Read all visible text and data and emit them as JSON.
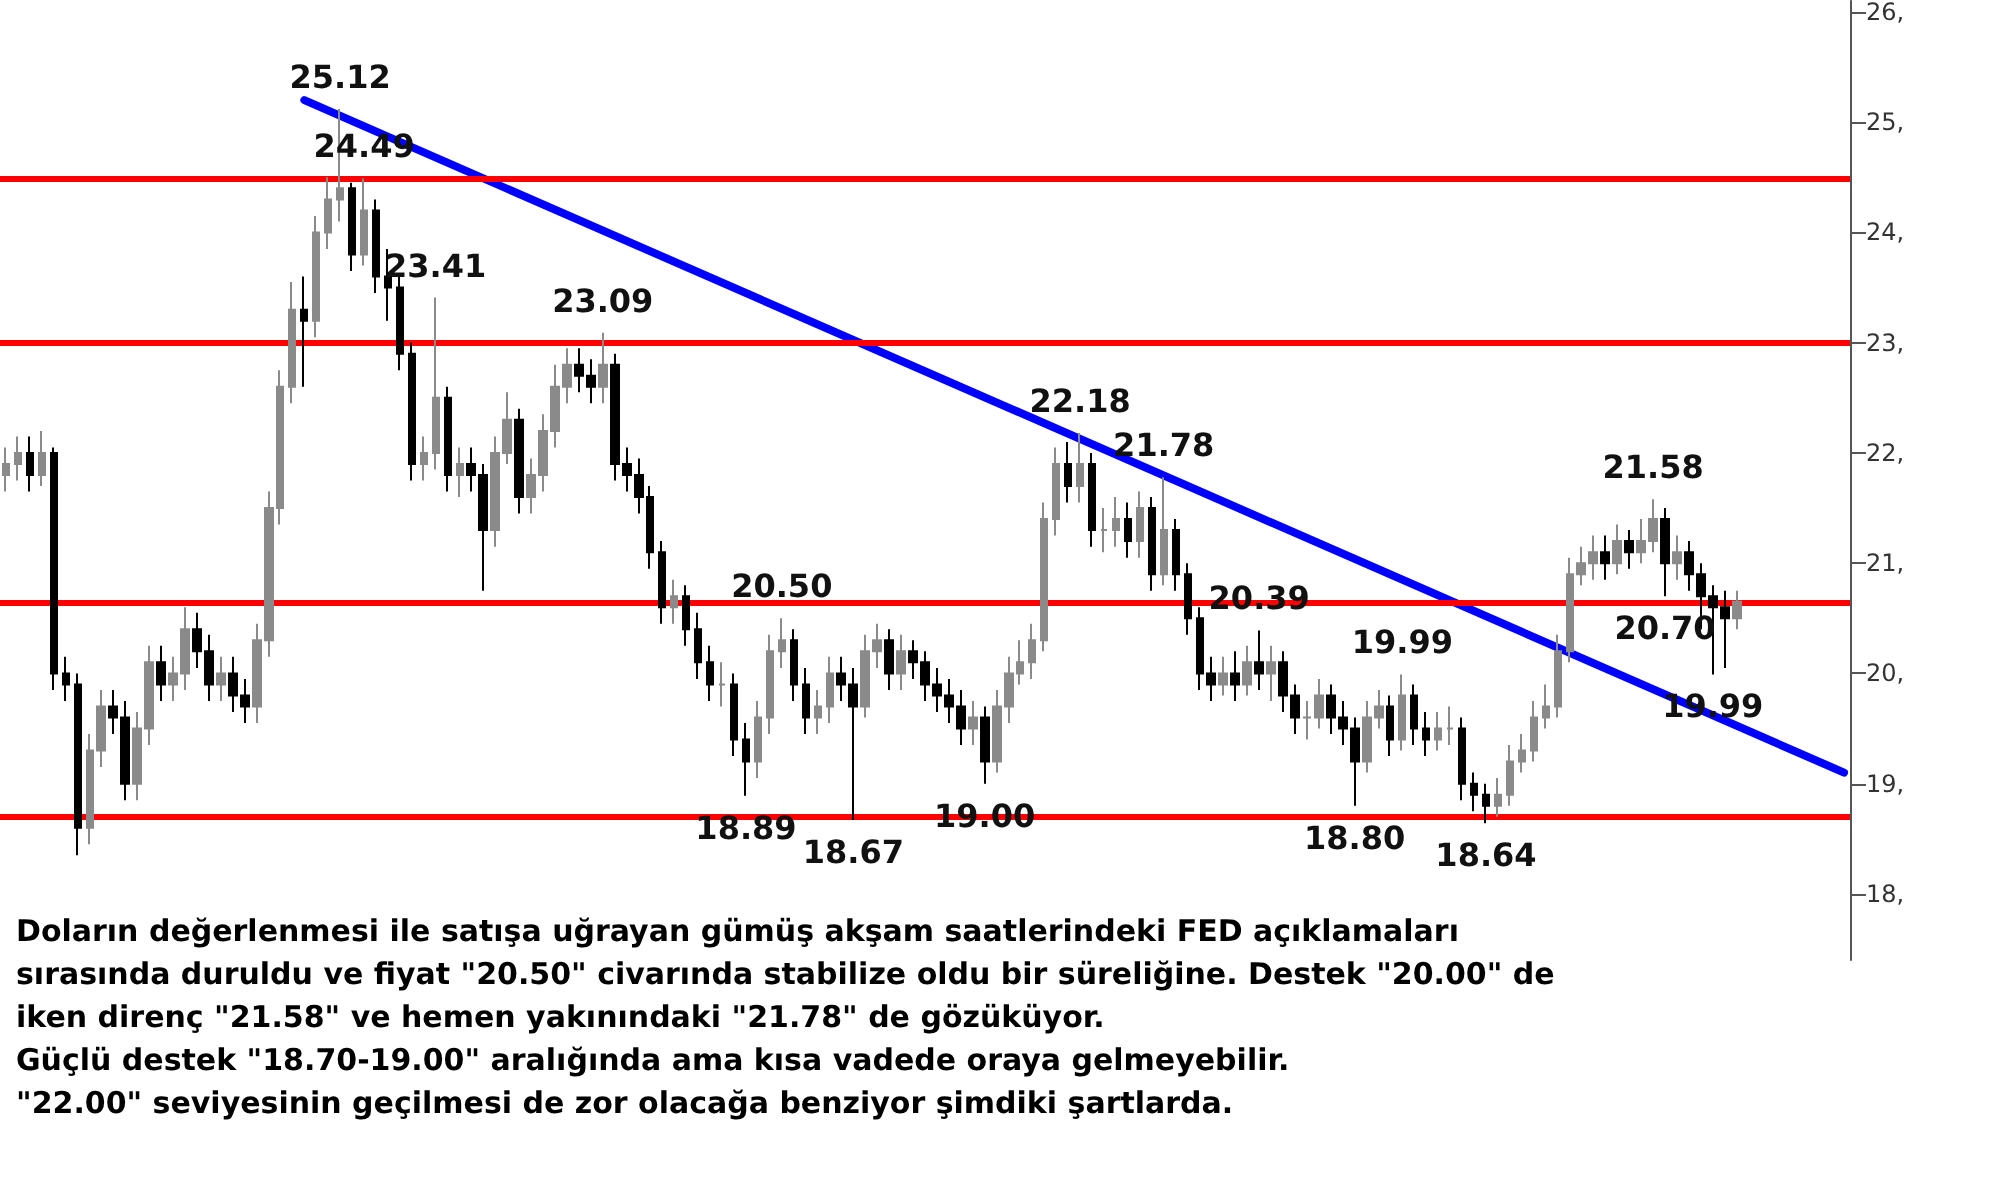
{
  "chart_data": {
    "type": "candlestick",
    "categories": [
      null,
      null,
      null,
      null,
      null,
      null,
      null,
      null,
      null,
      null,
      null,
      null,
      null,
      null,
      null,
      null,
      null,
      null,
      null,
      null,
      null,
      null,
      null,
      null,
      null,
      null,
      null,
      null,
      null,
      null,
      null,
      null,
      null,
      null,
      null,
      null,
      null,
      null,
      null,
      null,
      null,
      null,
      null,
      null,
      null,
      null,
      null,
      null,
      null,
      null,
      null,
      null,
      null,
      null,
      null,
      null,
      null,
      null,
      null,
      null,
      null,
      null,
      null,
      null,
      null,
      null,
      null,
      null,
      null,
      null,
      null,
      null,
      null,
      null,
      null,
      null,
      null,
      null,
      null,
      null,
      null,
      null,
      null,
      null,
      null,
      null,
      null,
      null,
      null,
      null,
      null,
      null,
      null,
      null,
      null,
      null,
      null,
      null,
      null,
      null,
      null,
      null,
      null,
      null,
      null,
      null,
      null,
      null,
      null,
      null,
      null,
      null,
      null,
      null,
      null,
      null,
      null,
      null,
      null,
      null,
      null,
      null,
      null,
      null,
      null,
      null,
      null,
      null,
      null,
      null,
      null,
      null,
      null,
      null,
      null,
      null,
      null,
      null,
      null,
      null,
      null,
      null,
      null,
      null,
      null,
      null,
      null,
      null,
      null,
      null,
      null,
      null,
      null,
      null,
      null
    ],
    "ohlc": [
      [
        21.8,
        22.05,
        21.65,
        21.9
      ],
      [
        21.9,
        22.15,
        21.75,
        22.0
      ],
      [
        22.0,
        22.15,
        21.65,
        21.8
      ],
      [
        21.8,
        22.2,
        21.7,
        22.0
      ],
      [
        22.0,
        22.05,
        19.85,
        20.0
      ],
      [
        20.0,
        20.15,
        19.75,
        19.9
      ],
      [
        19.9,
        20.0,
        18.35,
        18.6
      ],
      [
        18.6,
        19.45,
        18.45,
        19.3
      ],
      [
        19.3,
        19.85,
        19.15,
        19.7
      ],
      [
        19.7,
        19.85,
        19.45,
        19.6
      ],
      [
        19.6,
        19.75,
        18.85,
        19.0
      ],
      [
        19.0,
        19.65,
        18.85,
        19.5
      ],
      [
        19.5,
        20.25,
        19.35,
        20.1
      ],
      [
        20.1,
        20.25,
        19.75,
        19.9
      ],
      [
        19.9,
        20.15,
        19.75,
        20.0
      ],
      [
        20.0,
        20.6,
        19.85,
        20.4
      ],
      [
        20.4,
        20.55,
        20.05,
        20.2
      ],
      [
        20.2,
        20.35,
        19.75,
        19.9
      ],
      [
        19.9,
        20.15,
        19.75,
        20.0
      ],
      [
        20.0,
        20.15,
        19.65,
        19.8
      ],
      [
        19.8,
        19.95,
        19.55,
        19.7
      ],
      [
        19.7,
        20.45,
        19.55,
        20.3
      ],
      [
        20.3,
        21.65,
        20.15,
        21.5
      ],
      [
        21.5,
        22.75,
        21.35,
        22.6
      ],
      [
        22.6,
        23.55,
        22.45,
        23.3
      ],
      [
        23.3,
        23.6,
        22.6,
        23.2
      ],
      [
        23.2,
        24.15,
        23.05,
        24.0
      ],
      [
        24.0,
        24.5,
        23.85,
        24.3
      ],
      [
        24.3,
        25.12,
        24.1,
        24.4
      ],
      [
        24.4,
        24.45,
        23.65,
        23.8
      ],
      [
        23.8,
        24.49,
        23.7,
        24.2
      ],
      [
        24.2,
        24.3,
        23.45,
        23.6
      ],
      [
        23.6,
        23.85,
        23.2,
        23.5
      ],
      [
        23.5,
        23.6,
        22.75,
        22.9
      ],
      [
        22.9,
        23.0,
        21.75,
        21.9
      ],
      [
        21.9,
        22.15,
        21.75,
        22.0
      ],
      [
        22.0,
        23.41,
        21.85,
        22.5
      ],
      [
        22.5,
        22.6,
        21.65,
        21.8
      ],
      [
        21.8,
        22.05,
        21.6,
        21.9
      ],
      [
        21.9,
        22.05,
        21.65,
        21.8
      ],
      [
        21.8,
        21.9,
        20.75,
        21.3
      ],
      [
        21.3,
        22.15,
        21.15,
        22.0
      ],
      [
        22.0,
        22.55,
        21.9,
        22.3
      ],
      [
        22.3,
        22.4,
        21.45,
        21.6
      ],
      [
        21.6,
        21.95,
        21.45,
        21.8
      ],
      [
        21.8,
        22.35,
        21.65,
        22.2
      ],
      [
        22.2,
        22.8,
        22.05,
        22.6
      ],
      [
        22.6,
        22.95,
        22.45,
        22.8
      ],
      [
        22.8,
        22.95,
        22.55,
        22.7
      ],
      [
        22.7,
        22.85,
        22.45,
        22.6
      ],
      [
        22.6,
        23.09,
        22.45,
        22.8
      ],
      [
        22.8,
        22.9,
        21.75,
        21.9
      ],
      [
        21.9,
        22.05,
        21.65,
        21.8
      ],
      [
        21.8,
        21.95,
        21.45,
        21.6
      ],
      [
        21.6,
        21.7,
        20.95,
        21.1
      ],
      [
        21.1,
        21.2,
        20.45,
        20.6
      ],
      [
        20.6,
        20.85,
        20.45,
        20.7
      ],
      [
        20.7,
        20.8,
        20.25,
        20.4
      ],
      [
        20.4,
        20.55,
        19.95,
        20.1
      ],
      [
        20.1,
        20.25,
        19.75,
        19.9
      ],
      [
        19.9,
        20.1,
        19.7,
        19.9
      ],
      [
        19.9,
        20.0,
        19.25,
        19.4
      ],
      [
        19.4,
        19.55,
        18.89,
        19.2
      ],
      [
        19.2,
        19.75,
        19.05,
        19.6
      ],
      [
        19.6,
        20.35,
        19.45,
        20.2
      ],
      [
        20.2,
        20.5,
        20.05,
        20.3
      ],
      [
        20.3,
        20.4,
        19.75,
        19.9
      ],
      [
        19.9,
        20.05,
        19.45,
        19.6
      ],
      [
        19.6,
        19.85,
        19.45,
        19.7
      ],
      [
        19.7,
        20.15,
        19.55,
        20.0
      ],
      [
        20.0,
        20.15,
        19.75,
        19.9
      ],
      [
        19.9,
        20.05,
        18.67,
        19.7
      ],
      [
        19.7,
        20.35,
        19.6,
        20.2
      ],
      [
        20.2,
        20.45,
        20.05,
        20.3
      ],
      [
        20.3,
        20.4,
        19.85,
        20.0
      ],
      [
        20.0,
        20.35,
        19.85,
        20.2
      ],
      [
        20.2,
        20.3,
        19.95,
        20.1
      ],
      [
        20.1,
        20.2,
        19.75,
        19.9
      ],
      [
        19.9,
        20.05,
        19.65,
        19.8
      ],
      [
        19.8,
        19.95,
        19.55,
        19.7
      ],
      [
        19.7,
        19.85,
        19.35,
        19.5
      ],
      [
        19.5,
        19.75,
        19.35,
        19.6
      ],
      [
        19.6,
        19.7,
        19.0,
        19.2
      ],
      [
        19.2,
        19.85,
        19.1,
        19.7
      ],
      [
        19.7,
        20.15,
        19.55,
        20.0
      ],
      [
        20.0,
        20.3,
        19.9,
        20.1
      ],
      [
        20.1,
        20.45,
        19.95,
        20.3
      ],
      [
        20.3,
        21.55,
        20.2,
        21.4
      ],
      [
        21.4,
        22.05,
        21.25,
        21.9
      ],
      [
        21.9,
        22.1,
        21.55,
        21.7
      ],
      [
        21.7,
        22.18,
        21.55,
        21.9
      ],
      [
        21.9,
        22.0,
        21.15,
        21.3
      ],
      [
        21.3,
        21.5,
        21.1,
        21.3
      ],
      [
        21.3,
        21.6,
        21.15,
        21.4
      ],
      [
        21.4,
        21.55,
        21.05,
        21.2
      ],
      [
        21.2,
        21.65,
        21.05,
        21.5
      ],
      [
        21.5,
        21.6,
        20.75,
        20.9
      ],
      [
        20.9,
        21.78,
        20.8,
        21.3
      ],
      [
        21.3,
        21.4,
        20.75,
        20.9
      ],
      [
        20.9,
        21.0,
        20.35,
        20.5
      ],
      [
        20.5,
        20.6,
        19.85,
        20.0
      ],
      [
        20.0,
        20.15,
        19.75,
        19.9
      ],
      [
        19.9,
        20.15,
        19.8,
        20.0
      ],
      [
        20.0,
        20.2,
        19.75,
        19.9
      ],
      [
        19.9,
        20.25,
        19.8,
        20.1
      ],
      [
        20.1,
        20.39,
        19.85,
        20.0
      ],
      [
        20.0,
        20.25,
        19.75,
        20.1
      ],
      [
        20.1,
        20.2,
        19.65,
        19.8
      ],
      [
        19.8,
        19.9,
        19.45,
        19.6
      ],
      [
        19.6,
        19.75,
        19.4,
        19.6
      ],
      [
        19.6,
        19.95,
        19.5,
        19.8
      ],
      [
        19.8,
        19.9,
        19.45,
        19.6
      ],
      [
        19.6,
        19.75,
        19.35,
        19.5
      ],
      [
        19.5,
        19.6,
        18.8,
        19.2
      ],
      [
        19.2,
        19.75,
        19.1,
        19.6
      ],
      [
        19.6,
        19.85,
        19.5,
        19.7
      ],
      [
        19.7,
        19.8,
        19.25,
        19.4
      ],
      [
        19.4,
        19.99,
        19.3,
        19.8
      ],
      [
        19.8,
        19.9,
        19.35,
        19.5
      ],
      [
        19.5,
        19.65,
        19.25,
        19.4
      ],
      [
        19.4,
        19.65,
        19.3,
        19.5
      ],
      [
        19.5,
        19.7,
        19.35,
        19.5
      ],
      [
        19.5,
        19.6,
        18.85,
        19.0
      ],
      [
        19.0,
        19.1,
        18.75,
        18.9
      ],
      [
        18.9,
        19.0,
        18.64,
        18.8
      ],
      [
        18.8,
        19.05,
        18.7,
        18.9
      ],
      [
        18.9,
        19.35,
        18.8,
        19.2
      ],
      [
        19.2,
        19.45,
        19.1,
        19.3
      ],
      [
        19.3,
        19.75,
        19.2,
        19.6
      ],
      [
        19.6,
        19.9,
        19.5,
        19.7
      ],
      [
        19.7,
        20.35,
        19.6,
        20.2
      ],
      [
        20.2,
        21.05,
        20.1,
        20.9
      ],
      [
        20.9,
        21.15,
        20.8,
        21.0
      ],
      [
        21.0,
        21.25,
        20.85,
        21.1
      ],
      [
        21.1,
        21.25,
        20.85,
        21.0
      ],
      [
        21.0,
        21.35,
        20.9,
        21.2
      ],
      [
        21.2,
        21.3,
        20.95,
        21.1
      ],
      [
        21.1,
        21.4,
        21.0,
        21.2
      ],
      [
        21.2,
        21.58,
        21.1,
        21.4
      ],
      [
        21.4,
        21.5,
        20.7,
        21.0
      ],
      [
        21.0,
        21.25,
        20.85,
        21.1
      ],
      [
        21.1,
        21.2,
        20.75,
        20.9
      ],
      [
        20.9,
        21.0,
        20.4,
        20.7
      ],
      [
        20.7,
        20.8,
        19.99,
        20.6
      ],
      [
        20.6,
        20.75,
        20.05,
        20.5
      ],
      [
        20.5,
        20.75,
        20.4,
        20.65
      ],
      null,
      null,
      null,
      null,
      null,
      null,
      null,
      null,
      null
    ],
    "series": [
      {
        "type": "line",
        "color": "#0000ff",
        "values": [
          null,
          null,
          null,
          null,
          null,
          null,
          null,
          null,
          null,
          null,
          null,
          null,
          null,
          null,
          null,
          null,
          null,
          null,
          null,
          null,
          null,
          null,
          null,
          null,
          null,
          25.2,
          null,
          null,
          null,
          null,
          null,
          null,
          null,
          null,
          null,
          null,
          null,
          null,
          null,
          null,
          null,
          null,
          null,
          null,
          null,
          null,
          null,
          null,
          null,
          null,
          null,
          null,
          null,
          null,
          null,
          null,
          null,
          null,
          null,
          null,
          null,
          null,
          null,
          null,
          null,
          null,
          null,
          null,
          null,
          null,
          null,
          null,
          null,
          null,
          null,
          null,
          null,
          null,
          null,
          null,
          null,
          null,
          null,
          null,
          null,
          null,
          null,
          null,
          null,
          null,
          null,
          null,
          null,
          null,
          null,
          null,
          null,
          null,
          null,
          null,
          null,
          null,
          null,
          null,
          null,
          null,
          null,
          null,
          null,
          null,
          null,
          null,
          null,
          null,
          null,
          null,
          null,
          null,
          null,
          null,
          null,
          null,
          null,
          null,
          null,
          null,
          null,
          null,
          null,
          null,
          null,
          null,
          null,
          null,
          null,
          null,
          null,
          null,
          null,
          null,
          null,
          null,
          null,
          null,
          null,
          null,
          null,
          null,
          null,
          null,
          null,
          null,
          null,
          null,
          19.1
        ]
      }
    ],
    "ylim": [
      17.4,
      26.1
    ],
    "yticks": [
      {
        "value": 18,
        "label": "18,"
      },
      {
        "value": 19,
        "label": "19,"
      },
      {
        "value": 20,
        "label": "20,"
      },
      {
        "value": 21,
        "label": "21,"
      },
      {
        "value": 22,
        "label": "22,"
      },
      {
        "value": 23,
        "label": "23,"
      },
      {
        "value": 24,
        "label": "24,"
      },
      {
        "value": 25,
        "label": "25,"
      },
      {
        "value": 26,
        "label": "26,"
      }
    ],
    "ref_lines": [
      {
        "axis": "y",
        "value": 24.49,
        "color": "#ff0000"
      },
      {
        "axis": "y",
        "value": 23.0,
        "color": "#ff0000"
      },
      {
        "axis": "y",
        "value": 18.7,
        "color": "#ff0000"
      },
      {
        "axis": "y",
        "value": 20.65,
        "color": "#ff0000"
      }
    ],
    "annotations": [
      {
        "text": "25.12",
        "y": 25.12
      },
      {
        "text": "24.49",
        "y": 24.49
      },
      {
        "text": "23.41",
        "y": 23.41
      },
      {
        "text": "23.09",
        "y": 23.09
      },
      {
        "text": "18.89",
        "y": 18.89
      },
      {
        "text": "20.50",
        "y": 20.5
      },
      {
        "text": "18.67",
        "y": 18.67
      },
      {
        "text": "19.00",
        "y": 19.0
      },
      {
        "text": "22.18",
        "y": 22.18
      },
      {
        "text": "21.78",
        "y": 21.78
      },
      {
        "text": "20.39",
        "y": 20.39
      },
      {
        "text": "18.80",
        "y": 18.8
      },
      {
        "text": "19.99",
        "y": 19.99
      },
      {
        "text": "18.64",
        "y": 18.64
      },
      {
        "text": "21.58",
        "y": 21.58
      },
      {
        "text": "20.70",
        "y": 20.7
      },
      {
        "text": "19.99",
        "y": 19.99
      },
      "Doların değerlenmesi ile satışa uğrayan gümüş akşam saatlerindeki FED açıklamaları",
      "sırasında duruldu ve fiyat \"20.50\" civarında stabilize oldu bir süreliğine. Destek \"20.00\" de",
      "iken direnç \"21.58\" ve hemen yakınındaki \"21.78\" de gözüküyor.",
      "Güçlü destek \"18.70-19.00\" aralığında ama kısa vadede oraya gelmeyebilir.",
      "\"22.00\" seviyesinin geçilmesi de zor olacağa benziyor şimdiki şartlarda."
    ],
    "tick_labels": "y",
    "line_style": "solid"
  }
}
